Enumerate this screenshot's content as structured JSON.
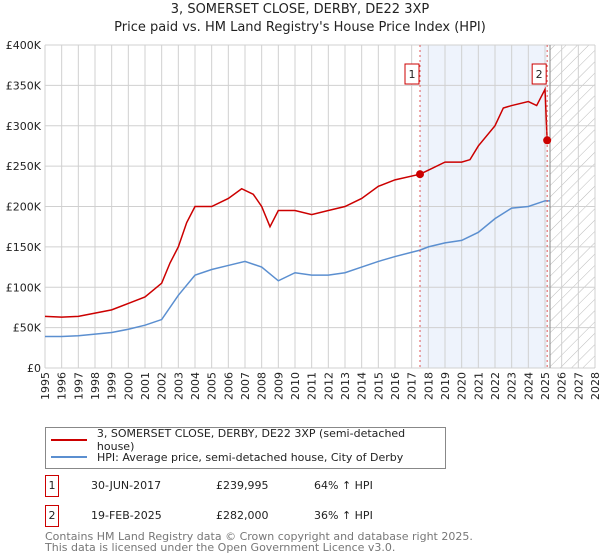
{
  "chart_data": {
    "type": "line",
    "title": "3, SOMERSET CLOSE, DERBY, DE22 3XP",
    "subtitle": "Price paid vs. HM Land Registry's House Price Index (HPI)",
    "xlim": [
      1995,
      2028
    ],
    "ylim": [
      0,
      400000
    ],
    "yticks": [
      {
        "v": 0,
        "label": "£0"
      },
      {
        "v": 50000,
        "label": "£50K"
      },
      {
        "v": 100000,
        "label": "£100K"
      },
      {
        "v": 150000,
        "label": "£150K"
      },
      {
        "v": 200000,
        "label": "£200K"
      },
      {
        "v": 250000,
        "label": "£250K"
      },
      {
        "v": 300000,
        "label": "£300K"
      },
      {
        "v": 350000,
        "label": "£350K"
      },
      {
        "v": 400000,
        "label": "£400K"
      }
    ],
    "xticks": [
      "1995",
      "1996",
      "1997",
      "1998",
      "1999",
      "2000",
      "2001",
      "2002",
      "2003",
      "2004",
      "2005",
      "2006",
      "2007",
      "2008",
      "2009",
      "2010",
      "2011",
      "2012",
      "2013",
      "2014",
      "2015",
      "2016",
      "2017",
      "2018",
      "2019",
      "2020",
      "2021",
      "2022",
      "2023",
      "2024",
      "2025",
      "2026",
      "2027",
      "2028"
    ],
    "series": [
      {
        "name": "3, SOMERSET CLOSE, DERBY, DE22 3XP (semi-detached house)",
        "color": "#cc0000",
        "x": [
          1995,
          1996,
          1997,
          1998,
          1999,
          2000,
          2001,
          2002,
          2002.5,
          2003,
          2003.5,
          2004,
          2005,
          2006,
          2006.8,
          2007.5,
          2008,
          2008.5,
          2009,
          2010,
          2011,
          2012,
          2013,
          2014,
          2015,
          2016,
          2017.5,
          2018,
          2019,
          2020,
          2020.5,
          2021,
          2022,
          2022.5,
          2023,
          2024,
          2024.5,
          2025,
          2025.13
        ],
        "y": [
          64000,
          63000,
          64000,
          68000,
          72000,
          80000,
          88000,
          105000,
          130000,
          150000,
          180000,
          200000,
          200000,
          210000,
          222000,
          215000,
          200000,
          175000,
          195000,
          195000,
          190000,
          195000,
          200000,
          210000,
          225000,
          233000,
          239995,
          245000,
          255000,
          255000,
          258000,
          275000,
          300000,
          322000,
          325000,
          330000,
          325000,
          345000,
          282000
        ]
      },
      {
        "name": "HPI: Average price, semi-detached house, City of Derby",
        "color": "#5b8fd0",
        "x": [
          1995,
          1996,
          1997,
          1998,
          1999,
          2000,
          2001,
          2002,
          2003,
          2004,
          2005,
          2006,
          2007,
          2008,
          2009,
          2010,
          2011,
          2012,
          2013,
          2014,
          2015,
          2016,
          2017.5,
          2018,
          2019,
          2020,
          2021,
          2022,
          2023,
          2024,
          2025,
          2025.3
        ],
        "y": [
          39000,
          39000,
          40000,
          42000,
          44000,
          48000,
          53000,
          60000,
          90000,
          115000,
          122000,
          127000,
          132000,
          125000,
          108000,
          118000,
          115000,
          115000,
          118000,
          125000,
          132000,
          138000,
          146000,
          150000,
          155000,
          158000,
          168000,
          185000,
          198000,
          200000,
          207000,
          207000
        ]
      }
    ],
    "sales": [
      {
        "label": "1",
        "x": 2017.5,
        "price": 239995
      },
      {
        "label": "2",
        "x": 2025.13,
        "price": 282000
      }
    ],
    "shaded_range": [
      2017.5,
      2025.13
    ],
    "forecast_hatch_from": 2025.3
  },
  "table": [
    {
      "num": "1",
      "date": "30-JUN-2017",
      "price": "£239,995",
      "hpi": "64% ↑ HPI"
    },
    {
      "num": "2",
      "date": "19-FEB-2025",
      "price": "£282,000",
      "hpi": "36% ↑ HPI"
    }
  ],
  "footer": {
    "line1": "Contains HM Land Registry data © Crown copyright and database right 2025.",
    "line2": "This data is licensed under the Open Government Licence v3.0."
  }
}
